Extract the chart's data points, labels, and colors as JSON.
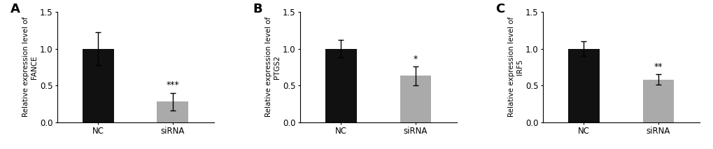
{
  "panels": [
    {
      "label": "A",
      "ylabel": "Relative expression level of\nFANCE",
      "categories": [
        "NC",
        "siRNA"
      ],
      "values": [
        1.0,
        0.28
      ],
      "errors": [
        0.22,
        0.12
      ],
      "bar_colors": [
        "#111111",
        "#aaaaaa"
      ],
      "significance": "***",
      "sig_on_bar": 1,
      "ylim": [
        0,
        1.5
      ],
      "yticks": [
        0.0,
        0.5,
        1.0,
        1.5
      ]
    },
    {
      "label": "B",
      "ylabel": "Relative expression level of\nPTGS2",
      "categories": [
        "NC",
        "siRNA"
      ],
      "values": [
        1.0,
        0.63
      ],
      "errors": [
        0.12,
        0.13
      ],
      "bar_colors": [
        "#111111",
        "#aaaaaa"
      ],
      "significance": "*",
      "sig_on_bar": 1,
      "ylim": [
        0,
        1.5
      ],
      "yticks": [
        0.0,
        0.5,
        1.0,
        1.5
      ]
    },
    {
      "label": "C",
      "ylabel": "Relative expression level of\nIRF5",
      "categories": [
        "NC",
        "siRNA"
      ],
      "values": [
        1.0,
        0.58
      ],
      "errors": [
        0.1,
        0.07
      ],
      "bar_colors": [
        "#111111",
        "#aaaaaa"
      ],
      "significance": "**",
      "sig_on_bar": 1,
      "ylim": [
        0,
        1.5
      ],
      "yticks": [
        0.0,
        0.5,
        1.0,
        1.5
      ]
    }
  ],
  "background_color": "#ffffff",
  "bar_width": 0.42,
  "capsize": 3,
  "tick_fontsize": 8.5,
  "ylabel_fontsize": 7.5,
  "sig_fontsize": 9,
  "panel_label_fontsize": 13
}
